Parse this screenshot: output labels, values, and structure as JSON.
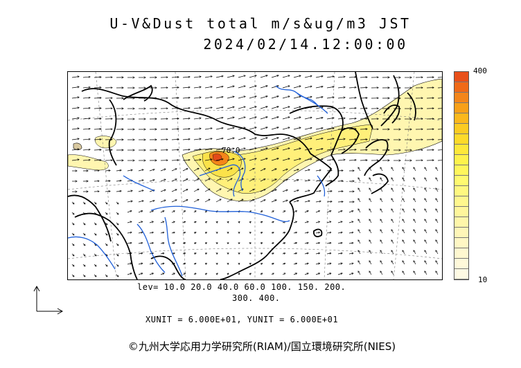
{
  "title": {
    "line1": "U-V&Dust total m/s&ug/m3 JST",
    "line2": "2024/02/14.12:00:00"
  },
  "colorbar": {
    "max_label": "400",
    "min_label": "10",
    "colors_top_to_bottom": [
      "#e8501a",
      "#f06a18",
      "#f4861a",
      "#f8a018",
      "#fbb81c",
      "#fccb22",
      "#fdda2a",
      "#fee83a",
      "#fef24c",
      "#fff65c",
      "#fffa70",
      "#fff880",
      "#fff78e",
      "#fff69c",
      "#fff6aa",
      "#fff6b8",
      "#fff7c4",
      "#fff8d0",
      "#fff9da",
      "#fffbe4"
    ]
  },
  "legend": {
    "levels_line1": "lev= 10.0 20.0 40.0 60.0 100. 150. 200.",
    "levels_line2": "300. 400.",
    "units": "XUNIT = 6.000E+01, YUNIT = 6.000E+01"
  },
  "contour_label": "70.0",
  "map_colors": {
    "coast": "#000000",
    "rivers": "#1f5fd8",
    "grid": "#777777",
    "dust_light": "#fff6b0",
    "dust_mid": "#fff07a",
    "dust_yellow": "#fbe24a",
    "dust_orange": "#f4861a",
    "dust_red": "#e34a1a"
  },
  "copyright": "©九州大学応用力学研究所(RIAM)/国立環境研究所(NIES)"
}
